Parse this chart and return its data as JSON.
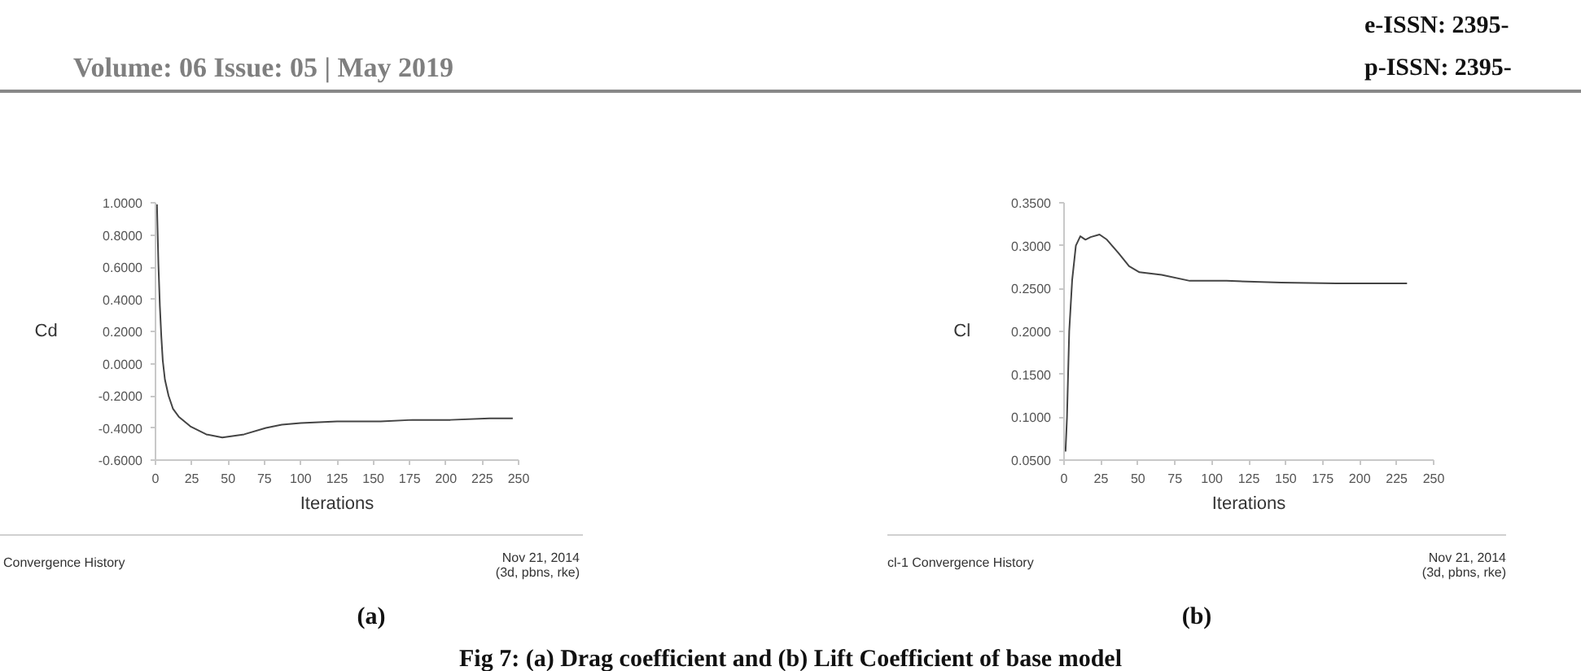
{
  "chart_data": [
    {
      "type": "line",
      "title": "Convergence History",
      "xlabel": "Iterations",
      "ylabel": "Cd",
      "annotations": [
        "Nov 21, 2014",
        "(3d, pbns, rke)",
        "(a)",
        "Fig 7: (a) Drag coefficient and (b) Lift Coefficient of base model",
        "Volume: 06 Issue: 05 | May 2019",
        "e-ISSN: 2395-",
        "p-ISSN: 2395-"
      ],
      "x": [
        1,
        2,
        3,
        4,
        5,
        6.5,
        9,
        12,
        16,
        24,
        35,
        46,
        61,
        76,
        87,
        100,
        125,
        155,
        177,
        203,
        230,
        246
      ],
      "series": [
        {
          "color": "#444444",
          "values": [
            0.99,
            0.62,
            0.36,
            0.17,
            0.02,
            -0.1,
            -0.2,
            -0.28,
            -0.33,
            -0.39,
            -0.44,
            -0.46,
            -0.44,
            -0.4,
            -0.38,
            -0.37,
            -0.36,
            -0.36,
            -0.35,
            -0.35,
            -0.34,
            -0.34
          ]
        }
      ],
      "xlim": [
        0,
        250
      ],
      "ylim": [
        -0.6,
        1.0
      ],
      "xticks": [
        0,
        25,
        50,
        75,
        100,
        125,
        150,
        175,
        200,
        225,
        250
      ],
      "yticks": [
        {
          "value": 1.0,
          "label": "1.0000"
        },
        {
          "value": 0.8,
          "label": "0.8000"
        },
        {
          "value": 0.6,
          "label": "0.6000"
        },
        {
          "value": 0.4,
          "label": "0.4000"
        },
        {
          "value": 0.2,
          "label": "0.2000"
        },
        {
          "value": 0.0,
          "label": "0.0000"
        },
        {
          "value": -0.2,
          "label": "-0.2000"
        },
        {
          "value": -0.4,
          "label": "-0.4000"
        },
        {
          "value": -0.6,
          "label": "-0.6000"
        }
      ],
      "grid": false,
      "marker": "none",
      "line_style": "solid"
    },
    {
      "type": "line",
      "title": "cl-1 Convergence History",
      "xlabel": "Iterations",
      "ylabel": "Cl",
      "annotations": [
        "Nov 21, 2014",
        "(3d, pbns, rke)",
        "(b)"
      ],
      "x": [
        1,
        2,
        3.5,
        5.5,
        8,
        11,
        14.5,
        18,
        24,
        29,
        37,
        44,
        51,
        66,
        85,
        110,
        147,
        184,
        232
      ],
      "series": [
        {
          "color": "#444444",
          "values": [
            0.06,
            0.1,
            0.2,
            0.26,
            0.3,
            0.311,
            0.307,
            0.31,
            0.313,
            0.307,
            0.291,
            0.276,
            0.269,
            0.266,
            0.259,
            0.259,
            0.257,
            0.256,
            0.256
          ]
        }
      ],
      "xlim": [
        0,
        250
      ],
      "ylim": [
        0.05,
        0.35
      ],
      "xticks": [
        0,
        25,
        50,
        75,
        100,
        125,
        150,
        175,
        200,
        225,
        250
      ],
      "yticks": [
        {
          "value": 0.35,
          "label": "0.3500"
        },
        {
          "value": 0.3,
          "label": "0.3000"
        },
        {
          "value": 0.25,
          "label": "0.2500"
        },
        {
          "value": 0.2,
          "label": "0.2000"
        },
        {
          "value": 0.15,
          "label": "0.1500"
        },
        {
          "value": 0.1,
          "label": "0.1000"
        },
        {
          "value": 0.05,
          "label": "0.0500"
        }
      ],
      "grid": false,
      "marker": "none",
      "line_style": "solid"
    }
  ]
}
